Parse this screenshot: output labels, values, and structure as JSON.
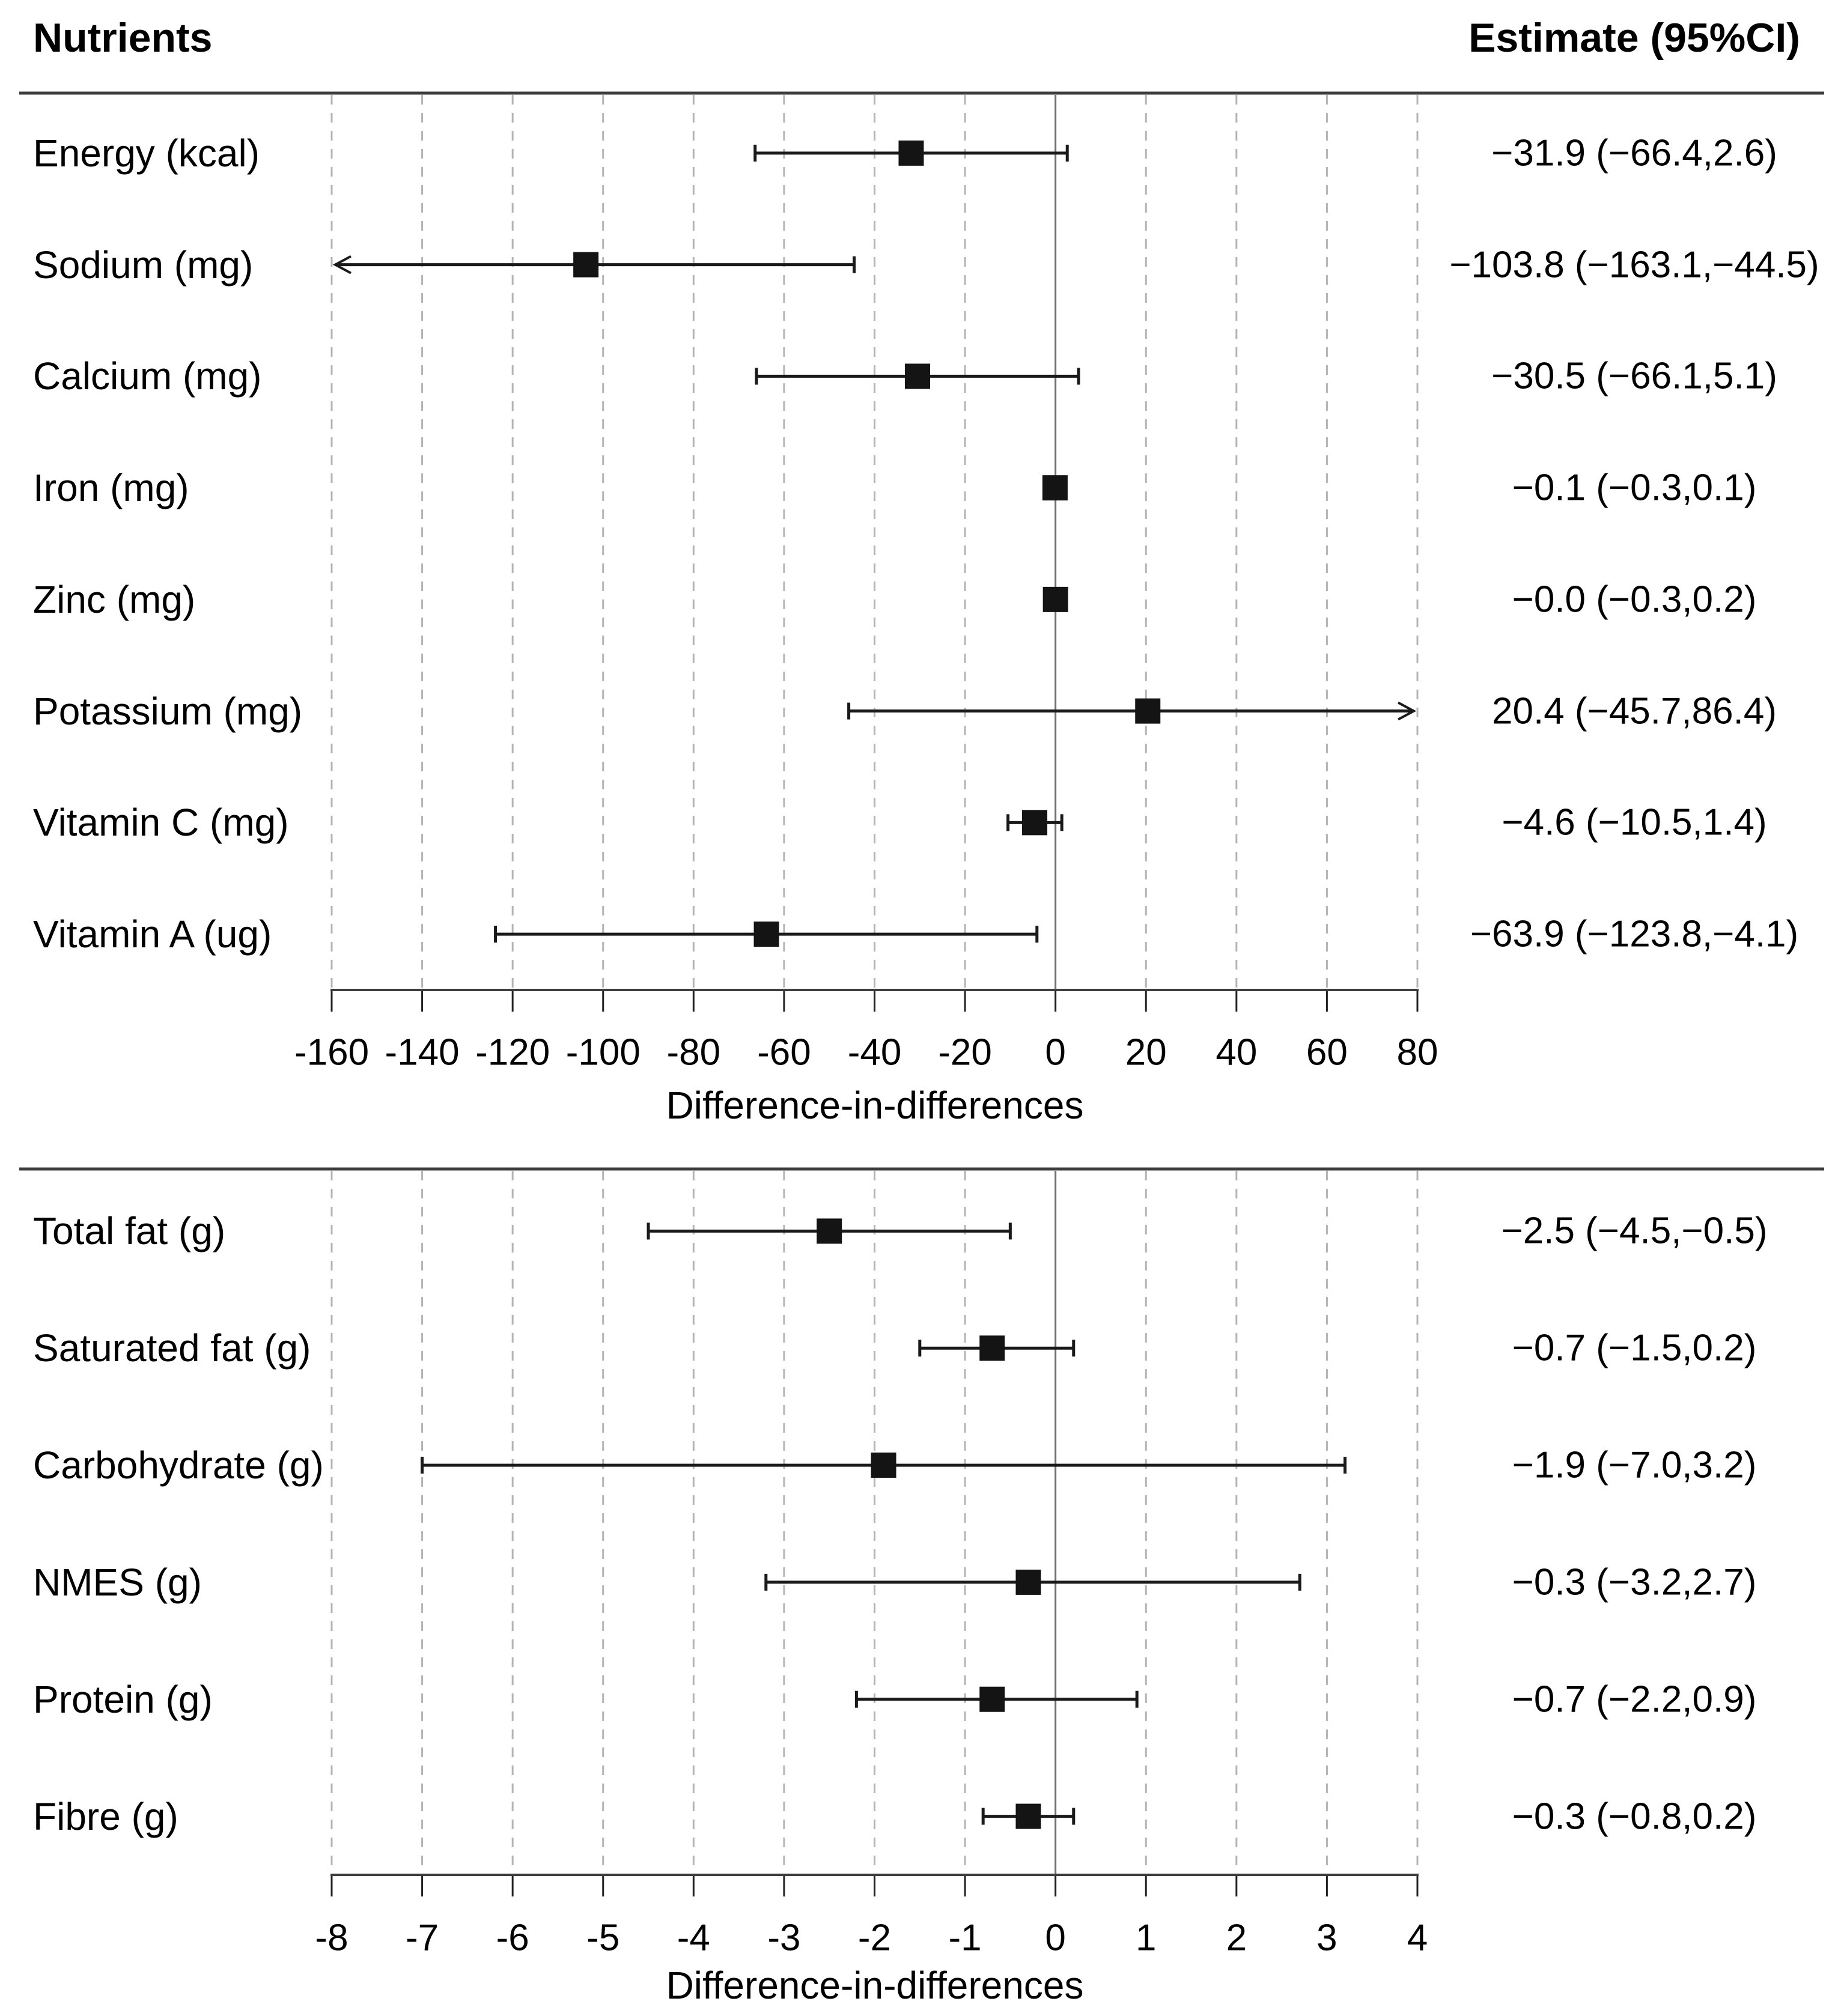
{
  "header": {
    "nutrients": "Nutrients",
    "estimate": "Estimate (95%CI)"
  },
  "style": {
    "background": "#ffffff",
    "text_color": "#000000",
    "axis_color": "#3d3d3d",
    "tick_color": "#222222",
    "grid_color": "#b4b4b4",
    "zero_line_color": "#737373",
    "marker_color": "#141414",
    "whisker_color": "#1a1a1a"
  },
  "chart_data": [
    {
      "type": "forest",
      "panel": "top",
      "xlabel": "Difference-in-differences",
      "xlim": [
        -160,
        80
      ],
      "xticks": [
        -160,
        -140,
        -120,
        -100,
        -80,
        -60,
        -40,
        -20,
        0,
        20,
        40,
        60,
        80
      ],
      "xtick_labels": [
        "-160",
        "-140",
        "-120",
        "-100",
        "-80",
        "-60",
        "-40",
        "-20",
        "0",
        "20",
        "40",
        "60",
        "80"
      ],
      "grid": true,
      "rows": [
        {
          "label": "Energy (kcal)",
          "estimate": -31.9,
          "ci_low": -66.4,
          "ci_high": 2.6,
          "estimate_text": "−31.9 (−66.4,2.6)",
          "arrow_low": false,
          "arrow_high": false
        },
        {
          "label": "Sodium (mg)",
          "estimate": -103.8,
          "ci_low": -163.1,
          "ci_high": -44.5,
          "estimate_text": "−103.8 (−163.1,−44.5)",
          "arrow_low": true,
          "arrow_high": false
        },
        {
          "label": "Calcium (mg)",
          "estimate": -30.5,
          "ci_low": -66.1,
          "ci_high": 5.1,
          "estimate_text": "−30.5 (−66.1,5.1)",
          "arrow_low": false,
          "arrow_high": false
        },
        {
          "label": "Iron (mg)",
          "estimate": -0.1,
          "ci_low": -0.3,
          "ci_high": 0.1,
          "estimate_text": "−0.1 (−0.3,0.1)",
          "arrow_low": false,
          "arrow_high": false
        },
        {
          "label": "Zinc (mg)",
          "estimate": -0.0,
          "ci_low": -0.3,
          "ci_high": 0.2,
          "estimate_text": "−0.0 (−0.3,0.2)",
          "arrow_low": false,
          "arrow_high": false
        },
        {
          "label": "Potassium (mg)",
          "estimate": 20.4,
          "ci_low": -45.7,
          "ci_high": 86.4,
          "estimate_text": "20.4 (−45.7,86.4)",
          "arrow_low": false,
          "arrow_high": true
        },
        {
          "label": "Vitamin C (mg)",
          "estimate": -4.6,
          "ci_low": -10.5,
          "ci_high": 1.4,
          "estimate_text": "−4.6 (−10.5,1.4)",
          "arrow_low": false,
          "arrow_high": false
        },
        {
          "label": "Vitamin A (ug)",
          "estimate": -63.9,
          "ci_low": -123.8,
          "ci_high": -4.1,
          "estimate_text": "−63.9 (−123.8,−4.1)",
          "arrow_low": false,
          "arrow_high": false
        }
      ]
    },
    {
      "type": "forest",
      "panel": "bottom",
      "xlabel": "Difference-in-differences",
      "xlim": [
        -8,
        4
      ],
      "xticks": [
        -8,
        -7,
        -6,
        -5,
        -4,
        -3,
        -2,
        -1,
        0,
        1,
        2,
        3,
        4
      ],
      "xtick_labels": [
        "-8",
        "-7",
        "-6",
        "-5",
        "-4",
        "-3",
        "-2",
        "-1",
        "0",
        "1",
        "2",
        "3",
        "4"
      ],
      "grid": true,
      "rows": [
        {
          "label": "Total fat (g)",
          "estimate": -2.5,
          "ci_low": -4.5,
          "ci_high": -0.5,
          "estimate_text": "−2.5 (−4.5,−0.5)",
          "arrow_low": false,
          "arrow_high": false
        },
        {
          "label": "Saturated fat (g)",
          "estimate": -0.7,
          "ci_low": -1.5,
          "ci_high": 0.2,
          "estimate_text": "−0.7 (−1.5,0.2)",
          "arrow_low": false,
          "arrow_high": false
        },
        {
          "label": "Carbohydrate (g)",
          "estimate": -1.9,
          "ci_low": -7.0,
          "ci_high": 3.2,
          "estimate_text": "−1.9 (−7.0,3.2)",
          "arrow_low": false,
          "arrow_high": false
        },
        {
          "label": "NMES (g)",
          "estimate": -0.3,
          "ci_low": -3.2,
          "ci_high": 2.7,
          "estimate_text": "−0.3 (−3.2,2.7)",
          "arrow_low": false,
          "arrow_high": false
        },
        {
          "label": "Protein (g)",
          "estimate": -0.7,
          "ci_low": -2.2,
          "ci_high": 0.9,
          "estimate_text": "−0.7 (−2.2,0.9)",
          "arrow_low": false,
          "arrow_high": false
        },
        {
          "label": "Fibre (g)",
          "estimate": -0.3,
          "ci_low": -0.8,
          "ci_high": 0.2,
          "estimate_text": "−0.3 (−0.8,0.2)",
          "arrow_low": false,
          "arrow_high": false
        }
      ]
    }
  ]
}
